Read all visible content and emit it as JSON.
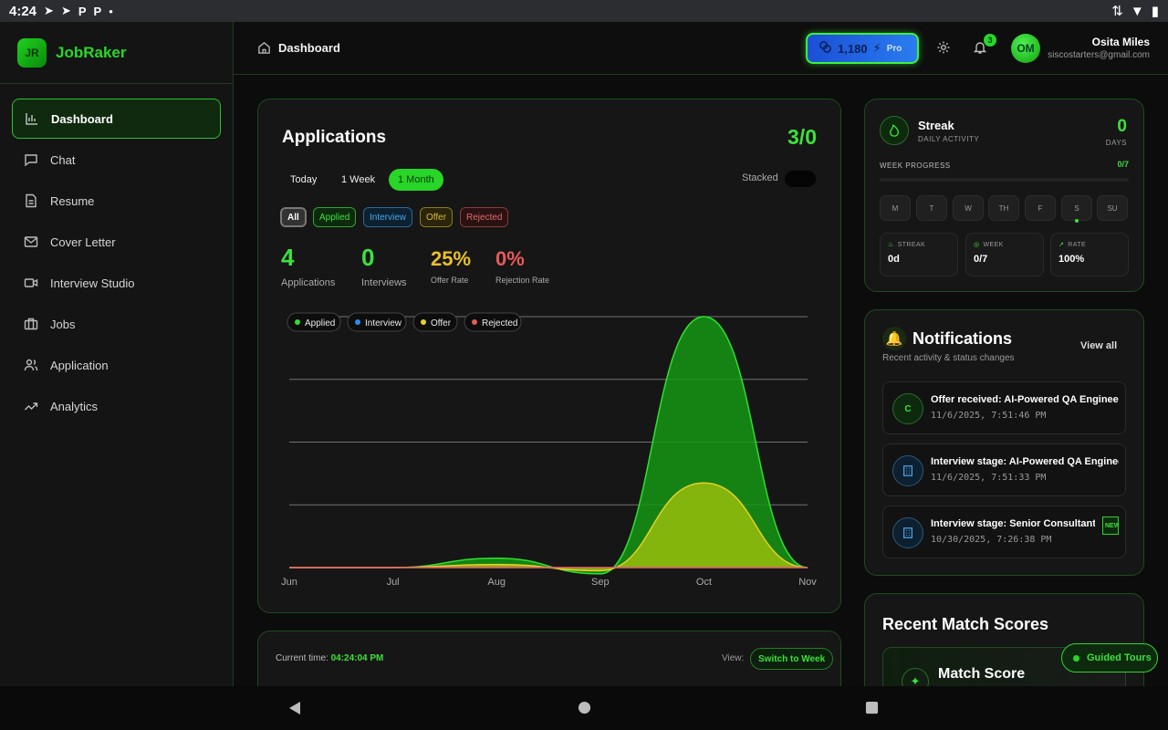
{
  "statusbar": {
    "time": "4:24"
  },
  "brand": {
    "logo_text": "JR",
    "name": "JobRaker"
  },
  "sidebar": {
    "items": [
      {
        "label": "Dashboard",
        "icon": "bar-chart-icon",
        "active": true
      },
      {
        "label": "Chat",
        "icon": "chat-icon"
      },
      {
        "label": "Resume",
        "icon": "document-icon"
      },
      {
        "label": "Cover Letter",
        "icon": "mail-icon"
      },
      {
        "label": "Interview Studio",
        "icon": "video-icon"
      },
      {
        "label": "Jobs",
        "icon": "briefcase-icon"
      },
      {
        "label": "Application",
        "icon": "users-icon"
      },
      {
        "label": "Analytics",
        "icon": "trend-icon"
      }
    ]
  },
  "topbar": {
    "breadcrumb": "Dashboard",
    "credits": "1,180",
    "plan": "Pro",
    "notifications_count": "3",
    "user": {
      "initials": "OM",
      "name": "Osita Miles",
      "email": "siscostarters@gmail.com"
    }
  },
  "applications": {
    "title": "Applications",
    "count": "3/0",
    "ranges": [
      "Today",
      "1 Week",
      "1 Month"
    ],
    "selected_range": "1 Month",
    "stacked_label": "Stacked",
    "filters": [
      "All",
      "Applied",
      "Interview",
      "Offer",
      "Rejected"
    ],
    "stats": [
      {
        "value": "4",
        "label": "Applications",
        "color": "#3ce13c"
      },
      {
        "value": "0",
        "label": "Interviews",
        "color": "#3ce13c"
      },
      {
        "value": "25%",
        "label": "Offer Rate",
        "color": "#e8c02a"
      },
      {
        "value": "0%",
        "label": "Rejection Rate",
        "color": "#e85a5a"
      }
    ]
  },
  "chart_data": {
    "type": "area",
    "x": [
      "Jun",
      "Jul",
      "Aug",
      "Sep",
      "Oct",
      "Nov"
    ],
    "series": [
      {
        "name": "Applied",
        "color": "#2ee02e",
        "values": [
          0,
          0,
          0.15,
          -0.1,
          4,
          0
        ]
      },
      {
        "name": "Interview",
        "color": "#2a8ef0",
        "values": [
          0,
          0,
          0,
          0,
          0,
          0
        ]
      },
      {
        "name": "Offer",
        "color": "#e8d02a",
        "values": [
          0,
          0,
          0.05,
          -0.05,
          1.35,
          0
        ]
      },
      {
        "name": "Rejected",
        "color": "#e85a5a",
        "values": [
          0,
          0,
          0,
          0,
          0,
          0
        ]
      }
    ],
    "ylim": [
      0,
      4
    ],
    "grid": true,
    "legend": "top-left"
  },
  "calendar": {
    "current_time_label": "Current time:",
    "current_time": "04:24:04 PM",
    "view_label": "View:",
    "switch_label": "Switch to Week"
  },
  "streak": {
    "title": "Streak",
    "subtitle": "DAILY ACTIVITY",
    "days_value": "0",
    "days_label": "DAYS",
    "week_progress_label": "WEEK PROGRESS",
    "week_progress_value": "0/7",
    "week_progress_fraction": 0,
    "days": [
      "M",
      "T",
      "W",
      "TH",
      "F",
      "S",
      "SU"
    ],
    "today_index": 5,
    "minis": [
      {
        "key": "STREAK",
        "value": "0d"
      },
      {
        "key": "WEEK",
        "value": "0/7"
      },
      {
        "key": "RATE",
        "value": "100%"
      }
    ]
  },
  "notifications": {
    "title": "Notifications",
    "subtitle": "Recent activity & status changes",
    "view_all": "View all",
    "items": [
      {
        "icon_text": "C",
        "title": "Offer received: AI-Powered QA Engineer III",
        "time": "11/6/2025, 7:51:46 PM"
      },
      {
        "icon_text": "",
        "title": "Interview stage: AI-Powered QA Engineer III",
        "time": "11/6/2025, 7:51:33 PM"
      },
      {
        "icon_text": "",
        "title": "Interview stage: Senior Consultant - AI",
        "time": "10/30/2025, 7:26:38 PM",
        "badge": "NEW"
      }
    ]
  },
  "match": {
    "title": "Recent Match Scores",
    "item_title": "Match Score"
  },
  "guided": {
    "label": "Guided Tours"
  }
}
